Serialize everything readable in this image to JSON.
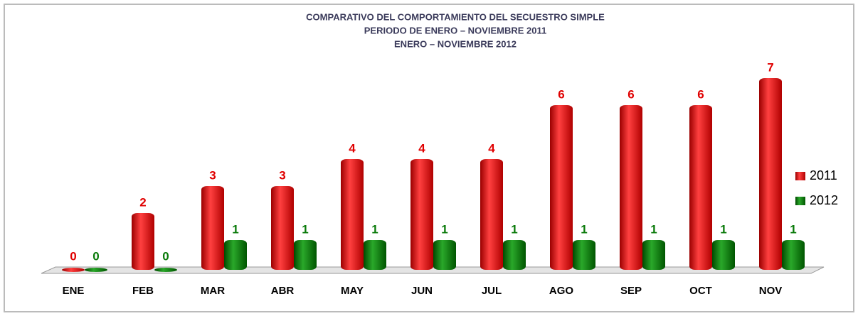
{
  "chart_data": {
    "type": "bar",
    "title": [
      "COMPARATIVO DEL COMPORTAMIENTO DEL  SECUESTRO SIMPLE",
      "PERIODO DE ENERO – NOVIEMBRE 2011",
      "ENERO – NOVIEMBRE 2012"
    ],
    "categories": [
      "ENE",
      "FEB",
      "MAR",
      "ABR",
      "MAY",
      "JUN",
      "JUL",
      "AGO",
      "SEP",
      "OCT",
      "NOV"
    ],
    "series": [
      {
        "name": "2011",
        "color": "#e00000",
        "values": [
          0,
          2,
          3,
          3,
          4,
          4,
          4,
          6,
          6,
          6,
          7
        ]
      },
      {
        "name": "2012",
        "color": "#0a7a0a",
        "values": [
          0,
          0,
          1,
          1,
          1,
          1,
          1,
          1,
          1,
          1,
          1
        ]
      }
    ],
    "legend": "right"
  }
}
